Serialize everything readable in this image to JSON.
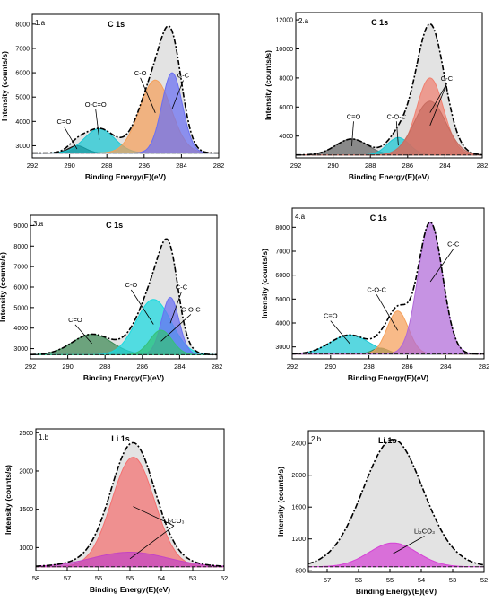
{
  "chart_data": [
    {
      "type": "area",
      "panel_label": "1.a",
      "title": "C 1s",
      "xlabel": "Binding Energy(E)(eV)",
      "ylabel": "Intensity (counts/s)",
      "xlim": [
        292,
        282
      ],
      "ylim": [
        2500,
        8400
      ],
      "x_ticks": [
        292,
        290,
        288,
        286,
        284,
        282
      ],
      "y_ticks": [
        3000,
        4000,
        5000,
        6000,
        7000,
        8000
      ],
      "background": 2700,
      "envelope_color": "#e3e3e3",
      "peaks": [
        {
          "name": "C=O",
          "center": 289.6,
          "fwhm": 1.1,
          "height": 300,
          "color": "#111111"
        },
        {
          "name": "O-C=O",
          "center": 288.4,
          "fwhm": 1.9,
          "height": 1000,
          "color": "#19c7d4"
        },
        {
          "name": "C-O",
          "center": 285.4,
          "fwhm": 2.0,
          "height": 3000,
          "color": "#f5a05a"
        },
        {
          "name": "C-C",
          "center": 284.5,
          "fwhm": 1.3,
          "height": 3300,
          "color": "#6a6ff2"
        }
      ],
      "annotations": [
        {
          "text": "C=O",
          "peak": 0,
          "lx": 290.3,
          "ly": 3900
        },
        {
          "text": "O-C=O",
          "peak": 1,
          "lx": 288.6,
          "ly": 4600
        },
        {
          "text": "C-O",
          "peak": 2,
          "lx": 286.2,
          "ly": 5900
        },
        {
          "text": "C-C",
          "peak": 3,
          "lx": 283.9,
          "ly": 5800
        }
      ]
    },
    {
      "type": "area",
      "panel_label": "2.a",
      "title": "C 1s",
      "xlabel": "Binding Energy(E)(eV)",
      "ylabel": "Intensity (counts/s)",
      "xlim": [
        292,
        282
      ],
      "ylim": [
        2500,
        12500
      ],
      "x_ticks": [
        292,
        290,
        288,
        286,
        284,
        282
      ],
      "y_ticks": [
        4000,
        6000,
        8000,
        10000,
        12000
      ],
      "background": 2700,
      "envelope_color": "#e3e3e3",
      "peaks": [
        {
          "name": "C=O",
          "center": 289.0,
          "fwhm": 2.0,
          "height": 1100,
          "color": "#666666"
        },
        {
          "name": "C-O-C",
          "center": 286.5,
          "fwhm": 1.4,
          "height": 1200,
          "color": "#19c7d4"
        },
        {
          "name": "C-C",
          "center": 284.8,
          "fwhm": 1.7,
          "height": 5300,
          "color": "#f08070"
        },
        {
          "name": "C-C",
          "center": 284.8,
          "fwhm": 2.0,
          "height": 3700,
          "color": "#c76b5f"
        }
      ],
      "annotations": [
        {
          "text": "C=O",
          "peak": 0,
          "lx": 288.9,
          "ly": 5200
        },
        {
          "text": "C-O-C",
          "peak": 1,
          "lx": 286.6,
          "ly": 5200
        },
        {
          "text": "C-C",
          "peak": 2,
          "lx": 283.9,
          "ly": 7800
        },
        {
          "text": "",
          "peak": 3,
          "lx": 283.9,
          "ly": 7800
        }
      ]
    },
    {
      "type": "area",
      "panel_label": "3.a",
      "title": "C 1s",
      "xlabel": "Binding Energy(E)(eV)",
      "ylabel": "Intensity (counts/s)",
      "xlim": [
        292,
        282
      ],
      "ylim": [
        2500,
        9500
      ],
      "x_ticks": [
        292,
        290,
        288,
        286,
        284,
        282
      ],
      "y_ticks": [
        3000,
        4000,
        5000,
        6000,
        7000,
        8000,
        9000
      ],
      "background": 2700,
      "envelope_color": "#e3e3e3",
      "peaks": [
        {
          "name": "C=O",
          "center": 288.7,
          "fwhm": 2.5,
          "height": 1000,
          "color": "#3e8a56"
        },
        {
          "name": "C-O",
          "center": 285.4,
          "fwhm": 2.2,
          "height": 2700,
          "color": "#19d9e0"
        },
        {
          "name": "C-C",
          "center": 284.5,
          "fwhm": 1.1,
          "height": 2800,
          "color": "#6a6ff2"
        },
        {
          "name": "C-O-C",
          "center": 285.0,
          "fwhm": 1.4,
          "height": 1200,
          "color": "#35c079"
        }
      ],
      "annotations": [
        {
          "text": "C=O",
          "peak": 0,
          "lx": 289.6,
          "ly": 4300
        },
        {
          "text": "C-O",
          "peak": 1,
          "lx": 286.6,
          "ly": 6000
        },
        {
          "text": "C-C",
          "peak": 2,
          "lx": 283.9,
          "ly": 5900
        },
        {
          "text": "C-O-C",
          "peak": 3,
          "lx": 283.4,
          "ly": 4800
        }
      ]
    },
    {
      "type": "area",
      "panel_label": "4.a",
      "title": "C 1s",
      "xlabel": "Binding Energy(E)(eV)",
      "ylabel": "Intensity (counts/s)",
      "xlim": [
        292,
        282
      ],
      "ylim": [
        2500,
        8800
      ],
      "x_ticks": [
        292,
        290,
        288,
        286,
        284,
        282
      ],
      "y_ticks": [
        3000,
        4000,
        5000,
        6000,
        7000,
        8000
      ],
      "background": 2700,
      "envelope_color": "#ffffff",
      "peaks": [
        {
          "name": "C=O",
          "center": 289.0,
          "fwhm": 2.4,
          "height": 800,
          "color": "#19c7d4"
        },
        {
          "name": "",
          "center": 287.4,
          "fwhm": 1.0,
          "height": 250,
          "color": "#3e8a56"
        },
        {
          "name": "C-O-C",
          "center": 286.5,
          "fwhm": 1.3,
          "height": 1800,
          "color": "#f5a05a"
        },
        {
          "name": "C-C",
          "center": 284.8,
          "fwhm": 1.5,
          "height": 5500,
          "color": "#b06ad8"
        }
      ],
      "annotations": [
        {
          "text": "C=O",
          "peak": 0,
          "lx": 290.0,
          "ly": 4200
        },
        {
          "text": "C-O-C",
          "peak": 2,
          "lx": 287.6,
          "ly": 5300
        },
        {
          "text": "C-C",
          "peak": 3,
          "lx": 283.6,
          "ly": 7200
        }
      ]
    },
    {
      "type": "area",
      "panel_label": "1.b",
      "title": "Li 1s",
      "xlabel": "Binding Energy(E)(eV)",
      "ylabel": "Intensity (counts/s)",
      "xlim": [
        58,
        52
      ],
      "ylim": [
        700,
        2550
      ],
      "x_ticks": [
        58,
        57,
        56,
        55,
        54,
        53,
        52
      ],
      "y_ticks": [
        1000,
        1500,
        2000,
        2500
      ],
      "background": 750,
      "envelope_color": "#e3e3e3",
      "peaks": [
        {
          "name": "Li2CO3",
          "center": 54.9,
          "fwhm": 1.6,
          "height": 1430,
          "color": "#f47070"
        },
        {
          "name": "Li2CO3",
          "center": 55.0,
          "fwhm": 2.8,
          "height": 190,
          "color": "#c444c4"
        }
      ],
      "annotations": [
        {
          "text": "Li₂CO₃",
          "peak": 0,
          "lx": 53.6,
          "ly": 1320
        },
        {
          "text": "",
          "peak": 1,
          "lx": 53.6,
          "ly": 1320
        }
      ]
    },
    {
      "type": "area",
      "panel_label": "2.b",
      "title": "Li 1s",
      "xlabel": "Binding Energy(E)(eV)",
      "ylabel": "Intensity (counts/s)",
      "xlim": [
        57.6,
        52
      ],
      "ylim": [
        780,
        2560
      ],
      "x_ticks": [
        57,
        56,
        55,
        54,
        53,
        52
      ],
      "y_ticks": [
        800,
        1200,
        1600,
        2000,
        2400
      ],
      "background": 850,
      "envelope_color": "#e3e3e3",
      "peaks": [
        {
          "name": "Li2CO3",
          "center": 54.9,
          "fwhm": 1.8,
          "height": 300,
          "color": "#d642d6"
        },
        {
          "name": "",
          "center": 54.9,
          "fwhm": 2.4,
          "height": 1300,
          "color": "none"
        }
      ],
      "annotations": [
        {
          "text": "Li₂CO₃",
          "peak": 0,
          "lx": 53.9,
          "ly": 1270
        }
      ]
    }
  ]
}
